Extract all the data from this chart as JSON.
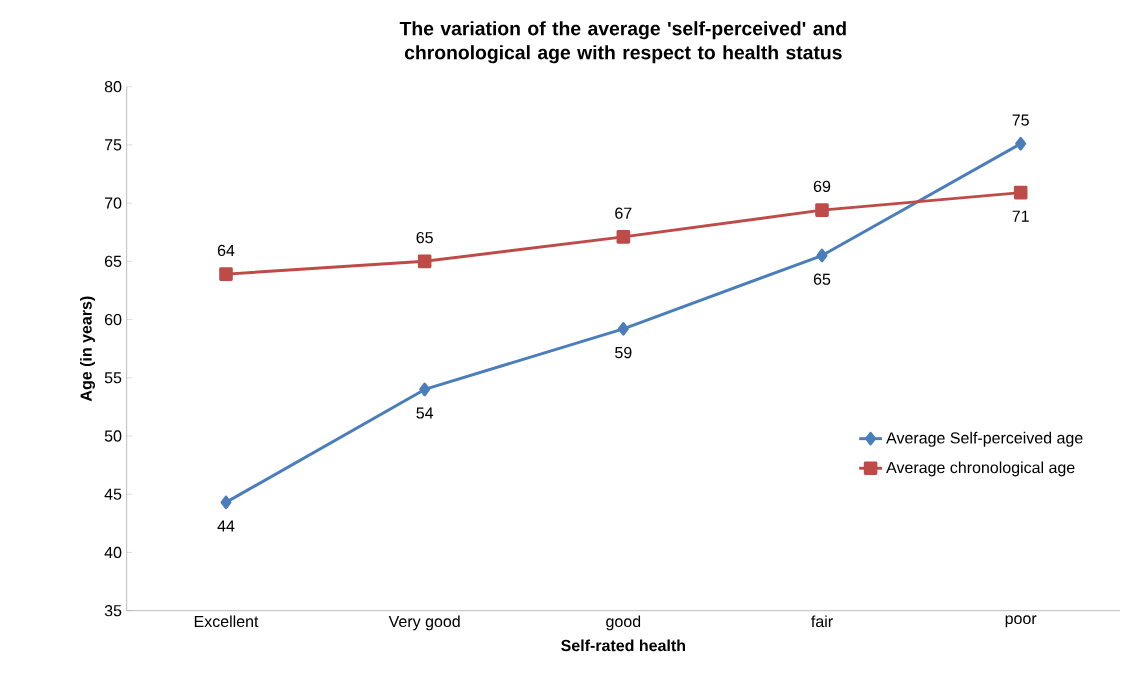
{
  "chart_data": {
    "type": "line",
    "title": "The variation of the average 'self-perceived' and chronological  age with respect to health status",
    "xlabel": "Self-rated health",
    "ylabel": "Age (in years)",
    "categories": [
      "Excellent",
      "Very good",
      "good",
      "fair",
      "poor"
    ],
    "series": [
      {
        "name": "Average Self-perceived age",
        "color": "#4a7ebb",
        "marker": "diamond",
        "values": [
          44.3,
          54.0,
          59.2,
          65.5,
          75.1
        ],
        "value_labels": [
          "44",
          "54",
          "59",
          "65",
          "75"
        ]
      },
      {
        "name": "Average chronological age",
        "color": "#be4b48",
        "marker": "square",
        "values": [
          63.9,
          65.0,
          67.1,
          69.4,
          70.9
        ],
        "value_labels": [
          "64",
          "65",
          "67",
          "69",
          "71"
        ]
      }
    ],
    "ylim": [
      35,
      80
    ],
    "yticks": [
      35,
      40,
      45,
      50,
      55,
      60,
      65,
      70,
      75,
      80
    ],
    "grid": false,
    "legend": "right",
    "line_style": "solid"
  }
}
